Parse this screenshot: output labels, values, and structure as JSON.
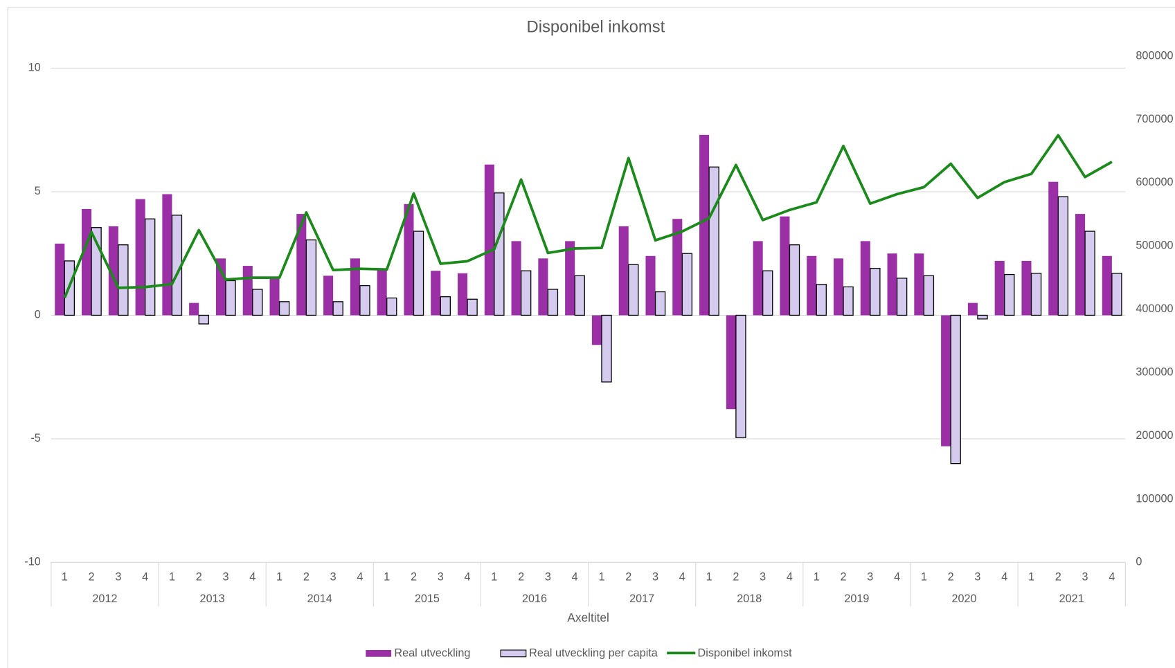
{
  "chart_data": {
    "type": "bar_line",
    "title": "Disponibel inkomst",
    "x_label": "Axeltitel",
    "categories": [
      "1",
      "2",
      "3",
      "4",
      "1",
      "2",
      "3",
      "4",
      "1",
      "2",
      "3",
      "4",
      "1",
      "2",
      "3",
      "4",
      "1",
      "2",
      "3",
      "4",
      "1",
      "2",
      "3",
      "4",
      "1",
      "2",
      "3",
      "4",
      "1",
      "2",
      "3",
      "4",
      "1",
      "2",
      "3",
      "4",
      "1",
      "2",
      "3",
      "4"
    ],
    "years": [
      "2012",
      "2013",
      "2014",
      "2015",
      "2016",
      "2017",
      "2018",
      "2019",
      "2020",
      "2021"
    ],
    "series": [
      {
        "name": "Real utveckling",
        "type": "bar",
        "color": "#9b2fa6",
        "values": [
          2.9,
          4.3,
          3.6,
          4.7,
          4.9,
          0.5,
          2.3,
          2.0,
          1.5,
          4.1,
          1.6,
          2.3,
          1.9,
          4.5,
          1.8,
          1.7,
          6.1,
          3.0,
          2.3,
          3.0,
          -1.2,
          3.6,
          2.4,
          3.9,
          7.3,
          -3.8,
          3.0,
          4.0,
          2.4,
          2.3,
          3.0,
          2.5,
          2.5,
          -5.3,
          0.5,
          2.2,
          2.2,
          5.4,
          4.1,
          2.4
        ]
      },
      {
        "name": "Real utveckling per capita",
        "type": "bar",
        "color": "#d5cbef",
        "values": [
          2.2,
          3.55,
          2.85,
          3.9,
          4.05,
          -0.35,
          1.4,
          1.05,
          0.55,
          3.05,
          0.55,
          1.2,
          0.7,
          3.4,
          0.75,
          0.65,
          4.95,
          1.8,
          1.05,
          1.6,
          -2.7,
          2.05,
          0.95,
          2.5,
          6.0,
          -4.95,
          1.8,
          2.85,
          1.25,
          1.15,
          1.9,
          1.5,
          1.6,
          -6.0,
          -0.15,
          1.65,
          1.7,
          4.8,
          3.4,
          1.7
        ]
      },
      {
        "name": "Disponibel inkomst",
        "type": "line",
        "axis": "y2",
        "color": "#1a8a1a",
        "values": [
          418000,
          522000,
          434000,
          435000,
          440000,
          525000,
          447000,
          450000,
          450000,
          553000,
          462000,
          464000,
          463000,
          583000,
          472000,
          476000,
          495000,
          605000,
          489000,
          496000,
          497000,
          639000,
          509000,
          523000,
          544000,
          628000,
          541000,
          557000,
          569000,
          658000,
          567000,
          582000,
          593000,
          630000,
          576000,
          601000,
          614000,
          675000,
          609000,
          633000
        ]
      }
    ],
    "ylim": [
      -10,
      10
    ],
    "yticks": [
      10,
      5,
      0,
      -5,
      -10
    ],
    "y2lim": [
      0,
      800000
    ],
    "y2ticks": [
      0,
      100000,
      200000,
      300000,
      400000,
      500000,
      600000,
      700000,
      800000
    ],
    "grid": true,
    "legend": "bottom"
  }
}
